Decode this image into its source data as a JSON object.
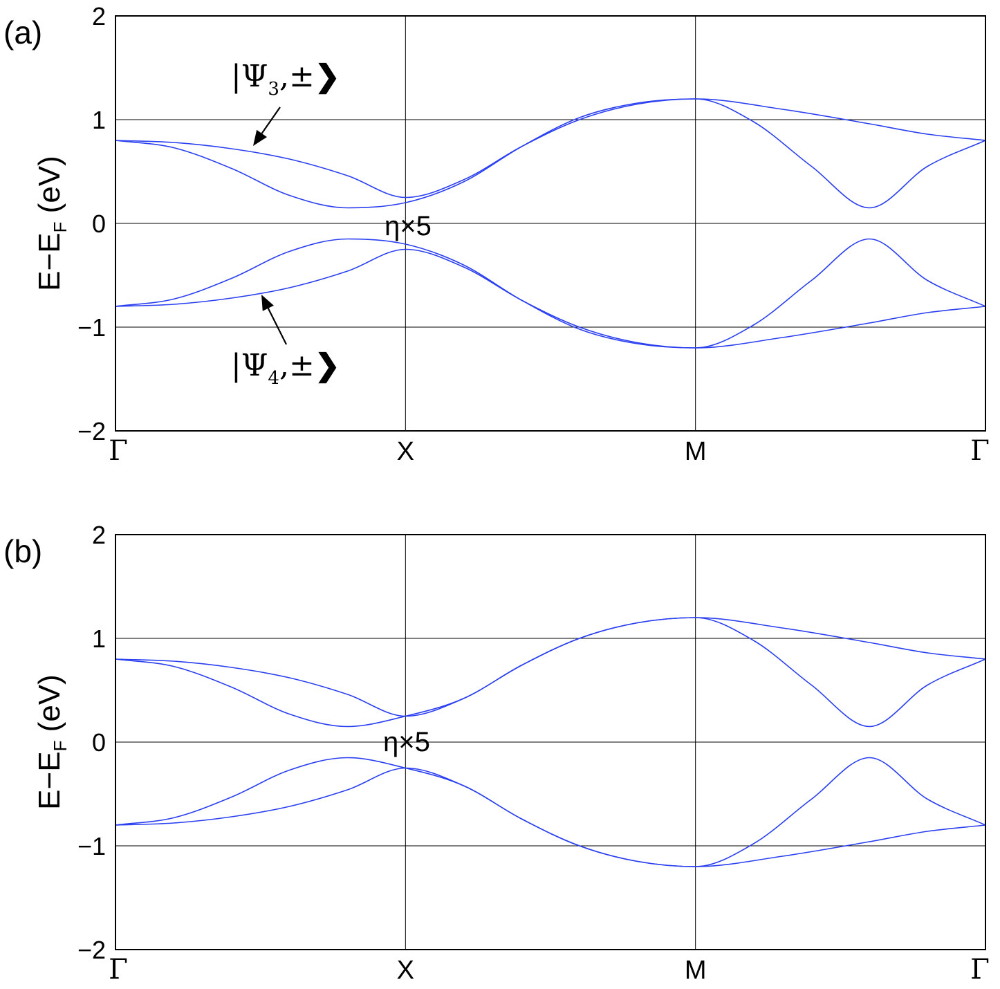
{
  "colors": {
    "band_line": "#2a3ff0",
    "axis": "#000000",
    "grid": "#000000",
    "background": "#ffffff"
  },
  "chart_data": [
    {
      "type": "line",
      "panel_label": "(a)",
      "ylabel": "E−E",
      "ylabel_subscript": "F",
      "ylabel_unit": "(eV)",
      "ylim": [
        -2,
        2
      ],
      "yticks": [
        -2,
        -1,
        0,
        1,
        2
      ],
      "ytick_labels": [
        "−2",
        "−1",
        "0",
        "1",
        "2"
      ],
      "xticks": [
        0,
        1,
        2,
        3
      ],
      "xtick_labels": [
        "Γ",
        "X",
        "M",
        "Γ"
      ],
      "grid": true,
      "annotations": {
        "eta": "η×5",
        "psi3": {
          "psi": "|Ψ",
          "sub": "3",
          "tail": ",±",
          "ket": "❯"
        },
        "psi4": {
          "psi": "|Ψ",
          "sub": "4",
          "tail": ",±",
          "ket": "❯"
        }
      },
      "series": [
        {
          "x": [
            0,
            0.2,
            0.4,
            0.6,
            0.8,
            1.0,
            1.2,
            1.4,
            1.6,
            1.8,
            2.0,
            2.3,
            2.6,
            2.8,
            3.0
          ],
          "values": [
            0.8,
            0.78,
            0.72,
            0.62,
            0.46,
            0.25,
            0.42,
            0.74,
            1.0,
            1.15,
            1.2,
            1.1,
            0.96,
            0.86,
            0.8
          ]
        },
        {
          "x": [
            0,
            0.2,
            0.4,
            0.6,
            0.8,
            1.0,
            1.2,
            1.4,
            1.6,
            1.8,
            2.0,
            2.2,
            2.4,
            2.6,
            2.8,
            3.0
          ],
          "values": [
            0.8,
            0.73,
            0.53,
            0.27,
            0.15,
            0.2,
            0.4,
            0.74,
            1.02,
            1.16,
            1.2,
            0.98,
            0.55,
            0.15,
            0.55,
            0.8
          ]
        },
        {
          "x": [
            0,
            0.2,
            0.4,
            0.6,
            0.8,
            1.0,
            1.2,
            1.4,
            1.6,
            1.8,
            2.0,
            2.2,
            2.4,
            2.6,
            2.8,
            3.0
          ],
          "values": [
            -0.8,
            -0.73,
            -0.53,
            -0.27,
            -0.15,
            -0.2,
            -0.4,
            -0.74,
            -1.02,
            -1.16,
            -1.2,
            -0.98,
            -0.55,
            -0.15,
            -0.55,
            -0.8
          ]
        },
        {
          "x": [
            0,
            0.2,
            0.4,
            0.6,
            0.8,
            1.0,
            1.2,
            1.4,
            1.6,
            1.8,
            2.0,
            2.3,
            2.6,
            2.8,
            3.0
          ],
          "values": [
            -0.8,
            -0.78,
            -0.72,
            -0.62,
            -0.46,
            -0.25,
            -0.42,
            -0.74,
            -1.0,
            -1.15,
            -1.2,
            -1.1,
            -0.96,
            -0.86,
            -0.8
          ]
        }
      ]
    },
    {
      "type": "line",
      "panel_label": "(b)",
      "ylabel": "E−E",
      "ylabel_subscript": "F",
      "ylabel_unit": "(eV)",
      "ylim": [
        -2,
        2
      ],
      "yticks": [
        -2,
        -1,
        0,
        1,
        2
      ],
      "ytick_labels": [
        "−2",
        "−1",
        "0",
        "1",
        "2"
      ],
      "xticks": [
        0,
        1,
        2,
        3
      ],
      "xtick_labels": [
        "Γ",
        "X",
        "M",
        "Γ"
      ],
      "grid": true,
      "annotations": {
        "eta": "η×5"
      },
      "series": [
        {
          "x": [
            0,
            0.2,
            0.4,
            0.6,
            0.8,
            1.0,
            1.2,
            1.4,
            1.6,
            1.8,
            2.0,
            2.3,
            2.6,
            2.8,
            3.0
          ],
          "values": [
            0.8,
            0.78,
            0.72,
            0.62,
            0.46,
            0.25,
            0.42,
            0.74,
            1.0,
            1.15,
            1.2,
            1.1,
            0.96,
            0.86,
            0.8
          ]
        },
        {
          "x": [
            0,
            0.2,
            0.4,
            0.6,
            0.8,
            1.0,
            1.2,
            1.4,
            1.6,
            1.8,
            2.0,
            2.2,
            2.4,
            2.6,
            2.8,
            3.0
          ],
          "values": [
            0.8,
            0.73,
            0.53,
            0.27,
            0.15,
            0.25,
            0.42,
            0.74,
            1.0,
            1.15,
            1.2,
            0.98,
            0.55,
            0.15,
            0.55,
            0.8
          ]
        },
        {
          "x": [
            0,
            0.2,
            0.4,
            0.6,
            0.8,
            1.0,
            1.2,
            1.4,
            1.6,
            1.8,
            2.0,
            2.2,
            2.4,
            2.6,
            2.8,
            3.0
          ],
          "values": [
            -0.8,
            -0.73,
            -0.53,
            -0.27,
            -0.15,
            -0.25,
            -0.42,
            -0.74,
            -1.0,
            -1.15,
            -1.2,
            -0.98,
            -0.55,
            -0.15,
            -0.55,
            -0.8
          ]
        },
        {
          "x": [
            0,
            0.2,
            0.4,
            0.6,
            0.8,
            1.0,
            1.2,
            1.4,
            1.6,
            1.8,
            2.0,
            2.3,
            2.6,
            2.8,
            3.0
          ],
          "values": [
            -0.8,
            -0.78,
            -0.72,
            -0.62,
            -0.46,
            -0.25,
            -0.42,
            -0.74,
            -1.0,
            -1.15,
            -1.2,
            -1.1,
            -0.96,
            -0.86,
            -0.8
          ]
        }
      ]
    }
  ]
}
